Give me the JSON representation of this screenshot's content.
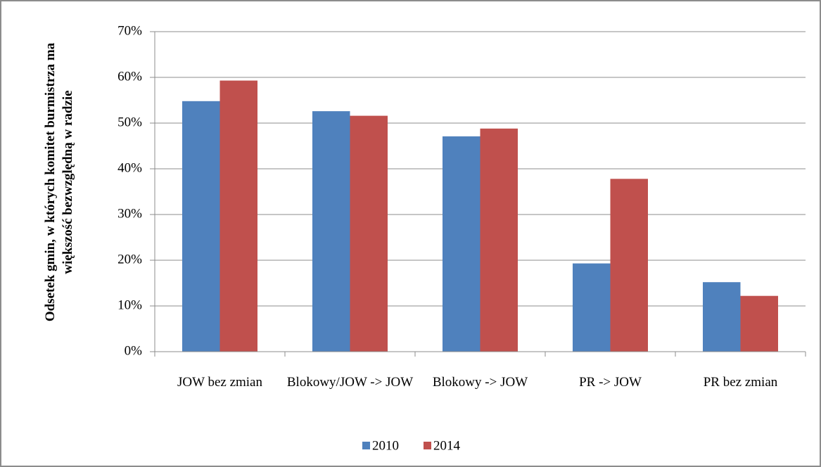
{
  "chart_data": {
    "type": "bar",
    "y_axis_label": "Odsetek gmin, w których komitet burmistrza ma większość bezwzględną w radzie",
    "categories": [
      "JOW bez zmian",
      "Blokowy/JOW -> JOW",
      "Blokowy -> JOW",
      "PR -> JOW",
      "PR bez zmian"
    ],
    "series": [
      {
        "name": "2010",
        "color": "#4f81bd",
        "values": [
          54.8,
          52.6,
          47.1,
          19.3,
          15.2
        ]
      },
      {
        "name": "2014",
        "color": "#c0504d",
        "values": [
          59.3,
          51.6,
          48.8,
          37.8,
          12.2
        ]
      }
    ],
    "ylim": [
      0,
      70
    ],
    "yticks": [
      {
        "value": 0,
        "label": "0%"
      },
      {
        "value": 10,
        "label": "10%"
      },
      {
        "value": 20,
        "label": "20%"
      },
      {
        "value": 30,
        "label": "30%"
      },
      {
        "value": 40,
        "label": "40%"
      },
      {
        "value": 50,
        "label": "50%"
      },
      {
        "value": 60,
        "label": "60%"
      },
      {
        "value": 70,
        "label": "70%"
      }
    ],
    "grid": true,
    "legend": "bottom"
  }
}
